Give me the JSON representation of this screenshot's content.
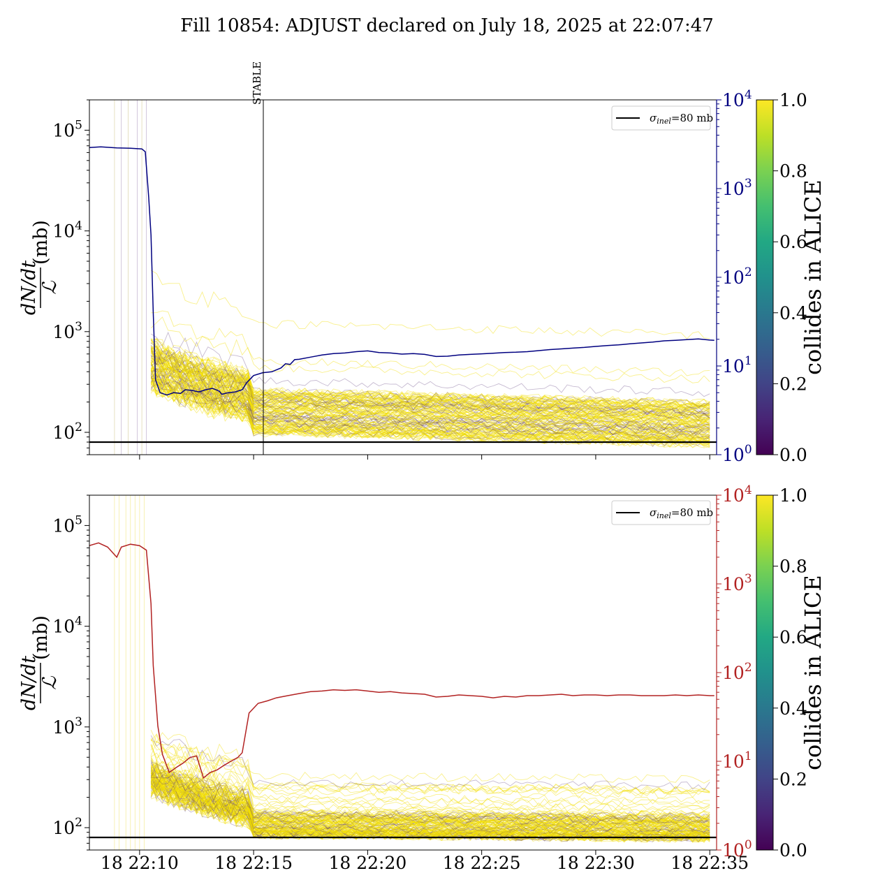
{
  "title": "Fill 10854: ADJUST declared on July 18, 2025 at 22:07:47",
  "colors": {
    "top_right_axis": "#000080",
    "bottom_right_axis": "#b22222",
    "threshold_line": "#000000",
    "band_yellow": "#f2dd00",
    "band_purple": "#5b3a7a"
  },
  "chart_data": [
    {
      "type": "line",
      "panel": "top",
      "ylabel_num": "dN/dt",
      "ylabel_den": "ℒ",
      "ylabel_unit": "(mb)",
      "yscale": "log",
      "ylim": [
        60,
        200000
      ],
      "yticks": [
        {
          "value": 100,
          "base": "10",
          "exp": "2"
        },
        {
          "value": 1000,
          "base": "10",
          "exp": "3"
        },
        {
          "value": 10000,
          "base": "10",
          "exp": "4"
        },
        {
          "value": 100000,
          "base": "10",
          "exp": "5"
        }
      ],
      "right_yscale": "log",
      "right_ylim": [
        1,
        10000
      ],
      "right_yticks": [
        {
          "value": 1,
          "base": "10",
          "exp": "0"
        },
        {
          "value": 10,
          "base": "10",
          "exp": "1"
        },
        {
          "value": 100,
          "base": "10",
          "exp": "2"
        },
        {
          "value": 1000,
          "base": "10",
          "exp": "3"
        },
        {
          "value": 10000,
          "base": "10",
          "exp": "4"
        }
      ],
      "legend": {
        "label_sym": "σ",
        "label_sub": "inel",
        "label_rest": "=80 mb",
        "placement": "top-right"
      },
      "threshold": 80,
      "vline": {
        "t": 15.45,
        "label": "STABLE"
      },
      "colorbar": {
        "label": "collides in ALICE",
        "ticks": [
          "0.0",
          "0.2",
          "0.4",
          "0.6",
          "0.8",
          "1.0"
        ]
      },
      "right_series": {
        "t": [
          7.8,
          8.3,
          9.0,
          9.6,
          10.1,
          10.25,
          10.4,
          10.5,
          10.6,
          10.7,
          10.9,
          11.2,
          11.5,
          11.8,
          12.0,
          12.3,
          12.6,
          12.9,
          13.2,
          13.5,
          13.6,
          13.9,
          14.2,
          14.5,
          14.7,
          15.0,
          15.4,
          15.8,
          16.2,
          16.4,
          16.6,
          16.8,
          17.0,
          17.5,
          18.0,
          18.5,
          19.0,
          19.5,
          20.0,
          20.5,
          21.0,
          21.5,
          22.0,
          22.5,
          23.0,
          23.5,
          24.0,
          24.5,
          25.0,
          25.5,
          26.0,
          26.5,
          27.0,
          27.5,
          28.0,
          28.5,
          29.0,
          29.5,
          30.0,
          30.5,
          31.0,
          31.5,
          32.0,
          32.5,
          33.0,
          33.5,
          34.0,
          34.5,
          35.0,
          35.2
        ],
        "v": [
          2900,
          2950,
          2880,
          2850,
          2800,
          2600,
          800,
          300,
          40,
          7,
          5.0,
          4.7,
          5.0,
          4.9,
          5.4,
          5.3,
          5.1,
          5.4,
          5.6,
          5.2,
          4.8,
          5.0,
          5.1,
          5.4,
          6.5,
          7.8,
          8.4,
          8.6,
          9.5,
          10.6,
          10.4,
          11.8,
          11.9,
          12.6,
          13.3,
          13.8,
          14.0,
          14.5,
          14.8,
          14.2,
          14.0,
          13.6,
          13.8,
          13.5,
          12.8,
          12.9,
          13.3,
          13.5,
          13.7,
          13.9,
          14.2,
          14.3,
          14.5,
          14.9,
          15.3,
          15.6,
          15.9,
          16.2,
          16.6,
          17.0,
          17.3,
          17.8,
          18.2,
          18.6,
          19.2,
          19.5,
          19.8,
          20.2,
          19.6,
          19.5
        ]
      }
    },
    {
      "type": "line",
      "panel": "bottom",
      "ylabel_num": "dN/dt",
      "ylabel_den": "ℒ",
      "ylabel_unit": "(mb)",
      "yscale": "log",
      "ylim": [
        60,
        200000
      ],
      "yticks": [
        {
          "value": 100,
          "base": "10",
          "exp": "2"
        },
        {
          "value": 1000,
          "base": "10",
          "exp": "3"
        },
        {
          "value": 10000,
          "base": "10",
          "exp": "4"
        },
        {
          "value": 100000,
          "base": "10",
          "exp": "5"
        }
      ],
      "right_yscale": "log",
      "right_ylim": [
        1,
        10000
      ],
      "right_yticks": [
        {
          "value": 1,
          "base": "10",
          "exp": "0"
        },
        {
          "value": 10,
          "base": "10",
          "exp": "1"
        },
        {
          "value": 100,
          "base": "10",
          "exp": "2"
        },
        {
          "value": 1000,
          "base": "10",
          "exp": "3"
        },
        {
          "value": 10000,
          "base": "10",
          "exp": "4"
        }
      ],
      "xlim": [
        7.8,
        35.3
      ],
      "xticks": [
        {
          "t": 10,
          "label": "18 22:10"
        },
        {
          "t": 15,
          "label": "18 22:15"
        },
        {
          "t": 20,
          "label": "18 22:20"
        },
        {
          "t": 25,
          "label": "18 22:25"
        },
        {
          "t": 30,
          "label": "18 22:30"
        },
        {
          "t": 35,
          "label": "18 22:35"
        }
      ],
      "legend": {
        "label_sym": "σ",
        "label_sub": "inel",
        "label_rest": "=80 mb",
        "placement": "top-right"
      },
      "threshold": 80,
      "colorbar": {
        "label": "collides in ALICE",
        "ticks": [
          "0.0",
          "0.2",
          "0.4",
          "0.6",
          "0.8",
          "1.0"
        ]
      },
      "right_series": {
        "t": [
          7.8,
          8.2,
          8.6,
          9.0,
          9.2,
          9.6,
          10.0,
          10.3,
          10.5,
          10.6,
          10.8,
          11.0,
          11.3,
          11.6,
          11.9,
          12.2,
          12.5,
          12.8,
          13.1,
          13.4,
          13.7,
          14.0,
          14.3,
          14.5,
          14.8,
          15.2,
          15.6,
          16.0,
          16.5,
          17.0,
          17.5,
          18.0,
          18.5,
          19.0,
          19.5,
          20.0,
          20.5,
          21.0,
          21.5,
          22.0,
          22.5,
          23.0,
          23.5,
          24.0,
          24.5,
          25.0,
          25.5,
          26.0,
          26.5,
          27.0,
          27.5,
          28.0,
          28.5,
          29.0,
          29.5,
          30.0,
          30.5,
          31.0,
          31.5,
          32.0,
          32.5,
          33.0,
          33.5,
          34.0,
          34.5,
          35.0,
          35.2
        ],
        "v": [
          2700,
          2900,
          2600,
          2000,
          2600,
          2800,
          2700,
          2400,
          600,
          120,
          25,
          12,
          7.5,
          8.5,
          9.5,
          11,
          11.5,
          6.5,
          7.5,
          8,
          9,
          10,
          11,
          12.5,
          35,
          45,
          48,
          52,
          55,
          58,
          61,
          62,
          64,
          63,
          64,
          62,
          60,
          61,
          59,
          58,
          57,
          53,
          54,
          56,
          55,
          54,
          52,
          54,
          53,
          55,
          55,
          56,
          57,
          55,
          56,
          56,
          55,
          56,
          56,
          55,
          55,
          55,
          56,
          55,
          56,
          55,
          55
        ]
      }
    }
  ]
}
